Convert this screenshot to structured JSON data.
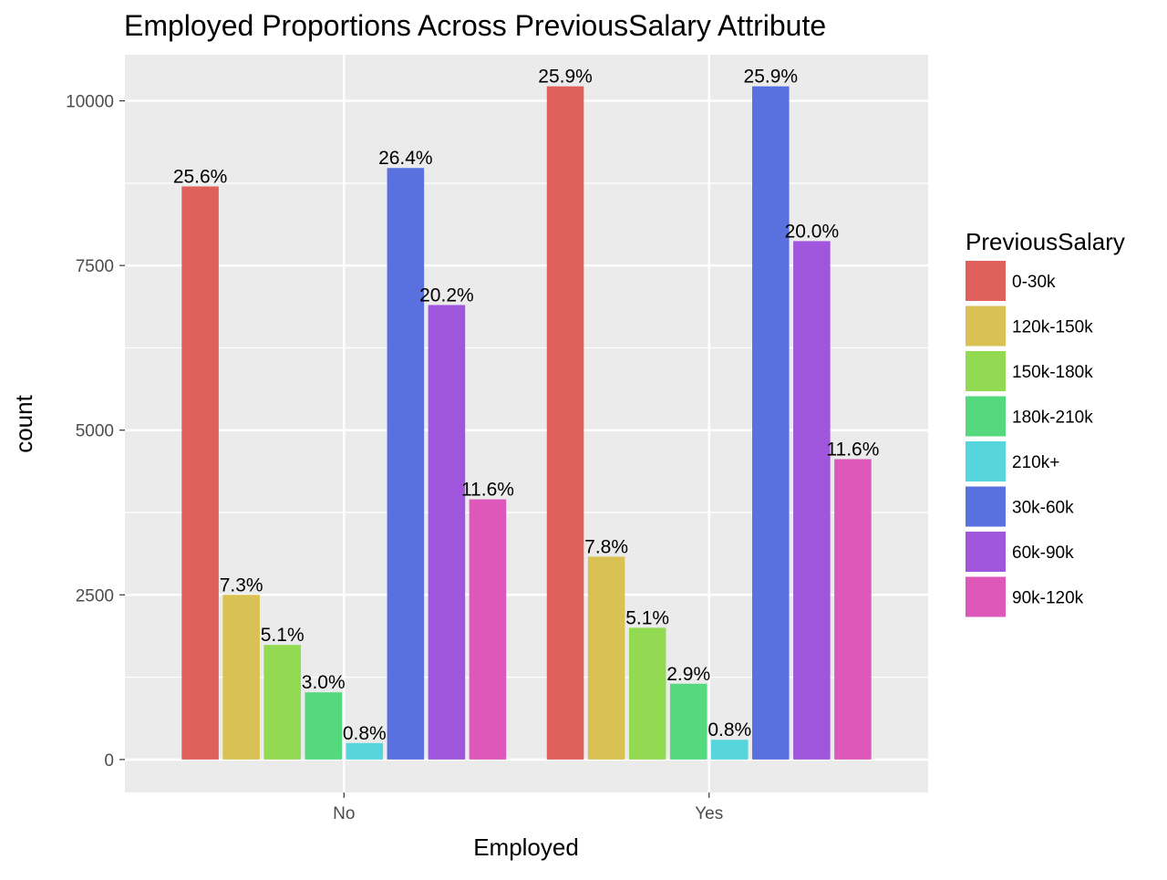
{
  "chart_data": {
    "type": "bar",
    "title": "Employed Proportions Across PreviousSalary Attribute",
    "xlabel": "Employed",
    "ylabel": "count",
    "categories": [
      "No",
      "Yes"
    ],
    "ylim": [
      -500,
      10700
    ],
    "yticks": [
      0,
      2500,
      5000,
      7500,
      10000
    ],
    "grid": true,
    "legend_title": "PreviousSalary",
    "legend_position": "right",
    "series": [
      {
        "name": "0-30k",
        "color": "#E0605B",
        "values": [
          8700,
          10220
        ],
        "labels": [
          "25.6%",
          "25.9%"
        ]
      },
      {
        "name": "120k-150k",
        "color": "#D9C154",
        "values": [
          2500,
          3080
        ],
        "labels": [
          "7.3%",
          "7.8%"
        ]
      },
      {
        "name": "150k-180k",
        "color": "#91DA52",
        "values": [
          1740,
          2000
        ],
        "labels": [
          "5.1%",
          "5.1%"
        ]
      },
      {
        "name": "180k-210k",
        "color": "#54D97E",
        "values": [
          1020,
          1150
        ],
        "labels": [
          "3.0%",
          "2.9%"
        ]
      },
      {
        "name": "210k+",
        "color": "#56D5DC",
        "values": [
          250,
          300
        ],
        "labels": [
          "0.8%",
          "0.8%"
        ]
      },
      {
        "name": "30k-60k",
        "color": "#5871DF",
        "values": [
          8980,
          10220
        ],
        "labels": [
          "26.4%",
          "25.9%"
        ]
      },
      {
        "name": "60k-90k",
        "color": "#A055DD",
        "values": [
          6900,
          7870
        ],
        "labels": [
          "20.2%",
          "20.0%"
        ]
      },
      {
        "name": "90k-120k",
        "color": "#DD58B8",
        "values": [
          3950,
          4560
        ],
        "labels": [
          "11.6%",
          "11.6%"
        ]
      }
    ]
  }
}
